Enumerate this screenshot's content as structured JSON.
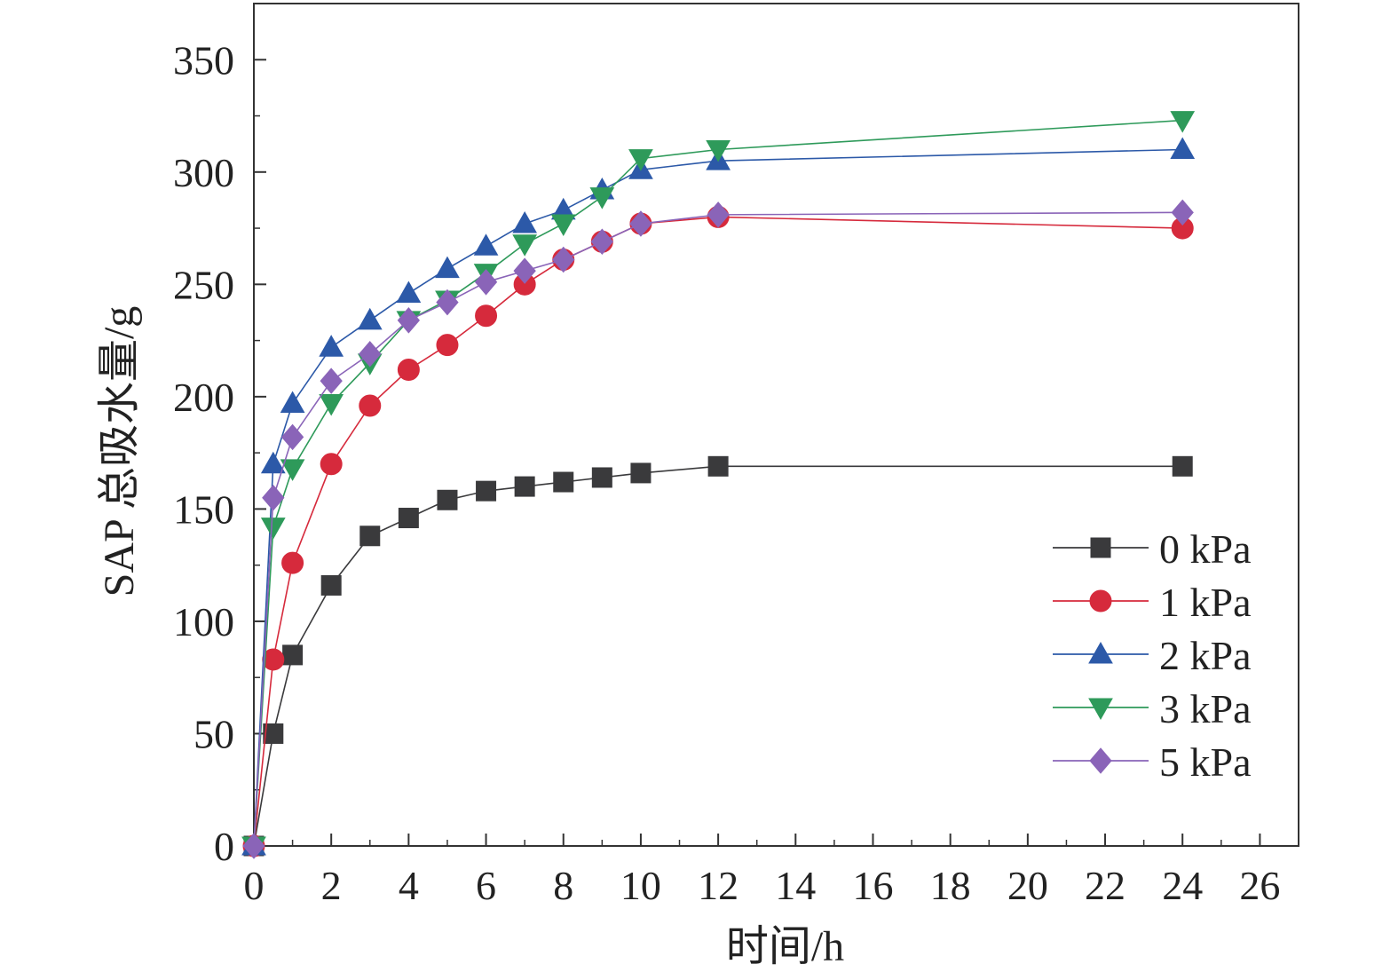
{
  "chart_data": {
    "type": "line",
    "xlabel": "时间/h",
    "ylabel": "SAP 总吸水量/g",
    "xlim": [
      0,
      27
    ],
    "ylim": [
      0,
      375
    ],
    "xticks": [
      0,
      2,
      4,
      6,
      8,
      10,
      12,
      14,
      16,
      18,
      20,
      22,
      24,
      26
    ],
    "yticks": [
      0,
      50,
      100,
      150,
      200,
      250,
      300,
      350
    ],
    "grid": false,
    "legend_position": "bottom-right",
    "series": [
      {
        "name": "0 kPa",
        "color": "#3a3a3c",
        "marker": "square",
        "x": [
          0,
          0.5,
          1,
          2,
          3,
          4,
          5,
          6,
          7,
          8,
          9,
          10,
          12,
          24
        ],
        "y": [
          0,
          50,
          85,
          116,
          138,
          146,
          154,
          158,
          160,
          162,
          164,
          166,
          169,
          169
        ]
      },
      {
        "name": "1 kPa",
        "color": "#d62a3c",
        "marker": "circle",
        "x": [
          0,
          0.5,
          1,
          2,
          3,
          4,
          5,
          6,
          7,
          8,
          9,
          10,
          12,
          24
        ],
        "y": [
          0,
          83,
          126,
          170,
          196,
          212,
          223,
          236,
          250,
          261,
          269,
          277,
          280,
          275
        ]
      },
      {
        "name": "2 kPa",
        "color": "#2c59a8",
        "marker": "triangle-up",
        "x": [
          0,
          0.5,
          1,
          2,
          3,
          4,
          5,
          6,
          7,
          8,
          9,
          10,
          12,
          24
        ],
        "y": [
          0,
          170,
          197,
          222,
          234,
          246,
          257,
          267,
          277,
          283,
          292,
          301,
          305,
          310
        ]
      },
      {
        "name": "3 kPa",
        "color": "#2e9a5a",
        "marker": "triangle-down",
        "x": [
          0,
          0.5,
          1,
          2,
          3,
          4,
          5,
          6,
          7,
          8,
          9,
          10,
          12,
          24
        ],
        "y": [
          0,
          142,
          168,
          197,
          215,
          234,
          243,
          255,
          268,
          277,
          289,
          306,
          310,
          323
        ]
      },
      {
        "name": "5 kPa",
        "color": "#8a64b8",
        "marker": "diamond",
        "x": [
          0,
          0.5,
          1,
          2,
          3,
          4,
          5,
          6,
          7,
          8,
          9,
          10,
          12,
          24
        ],
        "y": [
          0,
          155,
          182,
          207,
          219,
          234,
          242,
          251,
          256,
          261,
          269,
          277,
          281,
          282
        ]
      }
    ]
  }
}
